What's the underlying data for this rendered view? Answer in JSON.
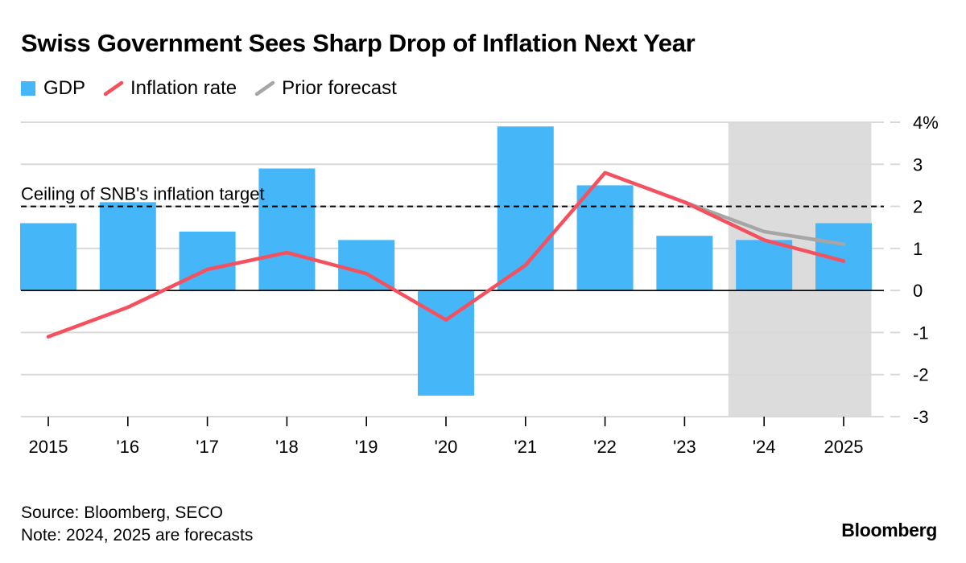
{
  "colors": {
    "gdp": "#45b6f7",
    "inflation": "#f5505e",
    "prior": "#a6a6a6",
    "forecast_shade": "#dcdcdc",
    "gridline": "#d9d9d9"
  },
  "chart_data": {
    "type": "bar",
    "title": "Swiss Government Sees Sharp Drop of Inflation Next Year",
    "categories": [
      "2015",
      "'16",
      "'17",
      "'18",
      "'19",
      "'20",
      "'21",
      "'22",
      "'23",
      "'24",
      "2025"
    ],
    "series": [
      {
        "name": "GDP",
        "kind": "bar",
        "values": [
          1.6,
          2.1,
          1.4,
          2.9,
          1.2,
          -2.5,
          3.9,
          2.5,
          1.3,
          1.2,
          1.6
        ]
      },
      {
        "name": "Inflation rate",
        "kind": "line",
        "values": [
          -1.1,
          -0.4,
          0.5,
          0.9,
          0.4,
          -0.7,
          0.6,
          2.8,
          2.1,
          1.2,
          0.7
        ]
      },
      {
        "name": "Prior forecast",
        "kind": "line",
        "x": [
          "'23",
          "'24",
          "2025"
        ],
        "values": [
          2.1,
          1.4,
          1.1
        ]
      }
    ],
    "yticks": [
      "4%",
      "3",
      "2",
      "1",
      "0",
      "-1",
      "-2",
      "-3"
    ],
    "ylim": [
      -3,
      4
    ],
    "reference_line": {
      "value": 2,
      "label": "Ceiling of SNB's inflation target",
      "style": "dashed"
    },
    "shaded_region": {
      "from": "'24",
      "to": "2025"
    },
    "legend_placement": "top-left",
    "grid": true
  },
  "footer": {
    "source": "Source: Bloomberg, SECO",
    "note": "Note: 2024, 2025 are forecasts"
  },
  "brand": "Bloomberg"
}
